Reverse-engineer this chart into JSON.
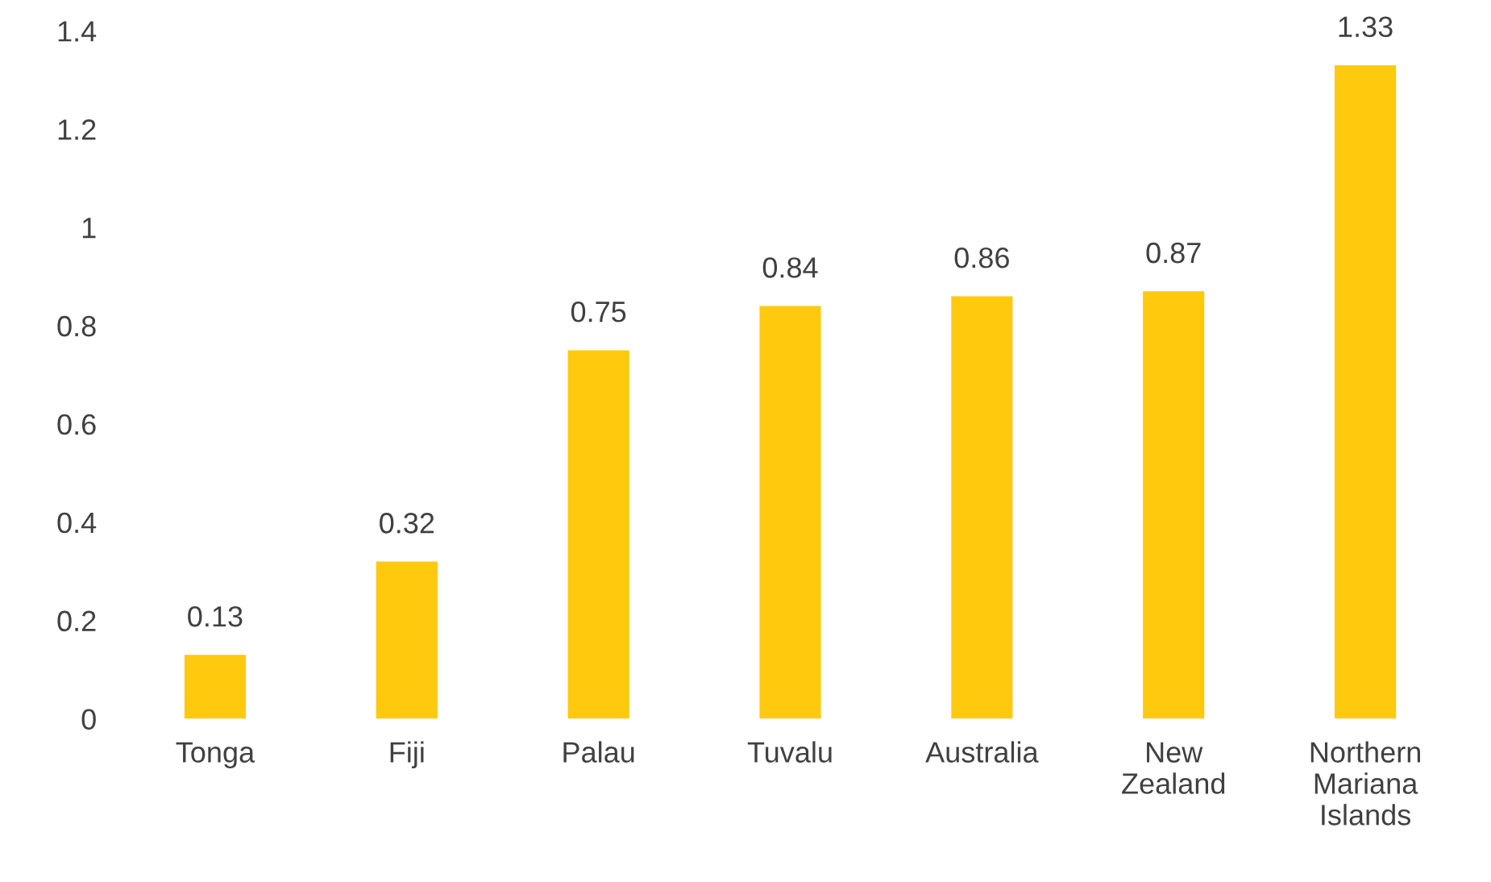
{
  "chart_data": {
    "type": "bar",
    "categories": [
      "Tonga",
      "Fiji",
      "Palau",
      "Tuvalu",
      "Australia",
      "New Zealand",
      "Northern Mariana Islands"
    ],
    "values": [
      0.13,
      0.32,
      0.75,
      0.84,
      0.86,
      0.87,
      1.33
    ],
    "color": "#ffc90e",
    "ylim": [
      0,
      1.4
    ],
    "yticks": [
      0,
      0.2,
      0.4,
      0.6,
      0.8,
      1,
      1.2,
      1.4
    ],
    "grid": false,
    "data_labels": true
  }
}
